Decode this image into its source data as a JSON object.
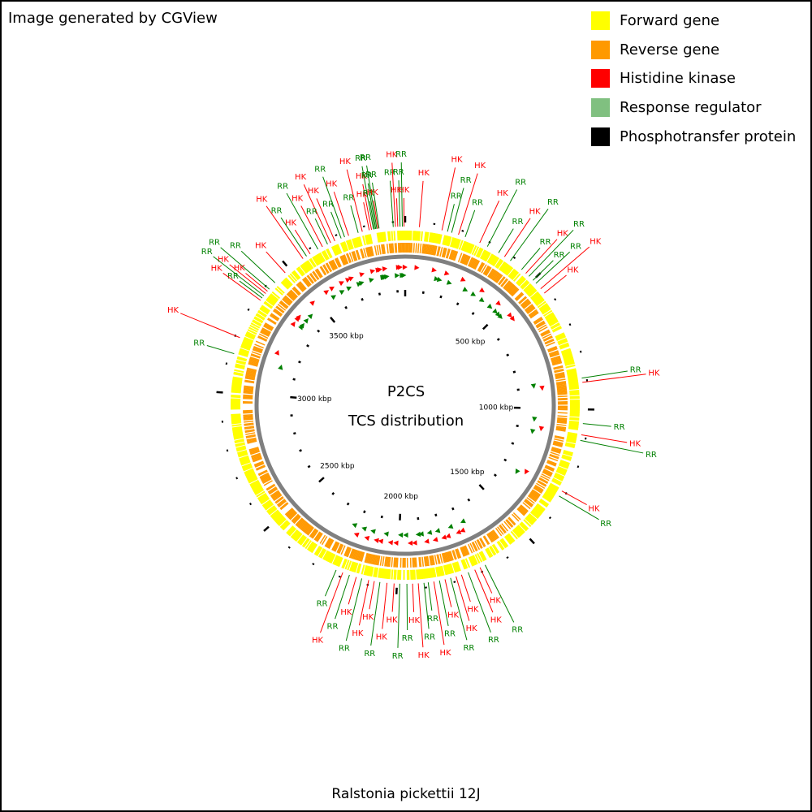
{
  "credit": "Image generated by CGView",
  "caption": "Ralstonia pickettii 12J",
  "center": {
    "line1": "P2CS",
    "line2": "TCS distribution"
  },
  "legend": [
    {
      "label": "Forward gene",
      "color": "#ffff00"
    },
    {
      "label": "Reverse gene",
      "color": "#ff9900"
    },
    {
      "label": "Histidine kinase",
      "color": "#ff0000"
    },
    {
      "label": "Response regulator",
      "color": "#80c080"
    },
    {
      "label": "Phosphotransfer protein",
      "color": "#000000"
    }
  ],
  "colors": {
    "forward": "#ffff00",
    "reverse": "#ff9900",
    "hk": "#ff0000",
    "rr": "#008000",
    "rr_legend": "#80c080",
    "backbone": "#808080"
  },
  "genome": {
    "length_kbp": 3942,
    "tick_labels": [
      {
        "kbp": 500,
        "text": "500 kbp"
      },
      {
        "kbp": 1000,
        "text": "1000 kbp"
      },
      {
        "kbp": 1500,
        "text": "1500 kbp"
      },
      {
        "kbp": 2000,
        "text": "2000 kbp"
      },
      {
        "kbp": 2500,
        "text": "2500 kbp"
      },
      {
        "kbp": 3000,
        "text": "3000 kbp"
      },
      {
        "kbp": 3500,
        "text": "3500 kbp"
      }
    ],
    "minor_tick_step_kbp": 100
  },
  "features": [
    {
      "type": "HK",
      "kbp": 3815
    },
    {
      "type": "HK",
      "kbp": 3823
    },
    {
      "type": "RR",
      "kbp": 3830
    },
    {
      "type": "RR",
      "kbp": 3834
    },
    {
      "type": "RR",
      "kbp": 3838
    },
    {
      "type": "RR",
      "kbp": 3842
    },
    {
      "type": "HK",
      "kbp": 3846
    },
    {
      "type": "RR",
      "kbp": 3850
    },
    {
      "type": "HK",
      "kbp": 3790
    },
    {
      "type": "RR",
      "kbp": 3775
    },
    {
      "type": "HK",
      "kbp": 3740
    },
    {
      "type": "RR",
      "kbp": 3725
    },
    {
      "type": "RR",
      "kbp": 3712
    },
    {
      "type": "HK",
      "kbp": 3688
    },
    {
      "type": "HK",
      "kbp": 3672
    },
    {
      "type": "RR",
      "kbp": 3660
    },
    {
      "type": "HK",
      "kbp": 3640
    },
    {
      "type": "RR",
      "kbp": 3622
    },
    {
      "type": "HK",
      "kbp": 3590
    },
    {
      "type": "RR",
      "kbp": 3575
    },
    {
      "type": "HK",
      "kbp": 3560
    },
    {
      "type": "HK",
      "kbp": 3480
    },
    {
      "type": "RR",
      "kbp": 3430
    },
    {
      "type": "RR",
      "kbp": 3400
    },
    {
      "type": "HK",
      "kbp": 3390
    },
    {
      "type": "HK",
      "kbp": 3380
    },
    {
      "type": "RR",
      "kbp": 3370
    },
    {
      "type": "RR",
      "kbp": 3360
    },
    {
      "type": "HK",
      "kbp": 3350
    },
    {
      "type": "HK",
      "kbp": 3200
    },
    {
      "type": "RR",
      "kbp": 3140
    },
    {
      "type": "RR",
      "kbp": 3900
    },
    {
      "type": "HK",
      "kbp": 3908
    },
    {
      "type": "HK",
      "kbp": 3916
    },
    {
      "type": "RR",
      "kbp": 3924
    },
    {
      "type": "RR",
      "kbp": 3932
    },
    {
      "type": "HK",
      "kbp": 3938
    },
    {
      "type": "HK",
      "kbp": 50
    },
    {
      "type": "HK",
      "kbp": 130
    },
    {
      "type": "RR",
      "kbp": 150
    },
    {
      "type": "RR",
      "kbp": 165
    },
    {
      "type": "HK",
      "kbp": 190
    },
    {
      "type": "RR",
      "kbp": 215
    },
    {
      "type": "HK",
      "kbp": 270
    },
    {
      "type": "RR",
      "kbp": 300
    },
    {
      "type": "RR",
      "kbp": 345
    },
    {
      "type": "HK",
      "kbp": 370
    },
    {
      "type": "RR",
      "kbp": 395
    },
    {
      "type": "RR",
      "kbp": 445
    },
    {
      "type": "HK",
      "kbp": 465
    },
    {
      "type": "RR",
      "kbp": 480
    },
    {
      "type": "RR",
      "kbp": 500
    },
    {
      "type": "RR",
      "kbp": 515
    },
    {
      "type": "HK",
      "kbp": 540
    },
    {
      "type": "HK",
      "kbp": 560
    },
    {
      "type": "RR",
      "kbp": 890
    },
    {
      "type": "HK",
      "kbp": 905
    },
    {
      "type": "RR",
      "kbp": 1050
    },
    {
      "type": "HK",
      "kbp": 1090
    },
    {
      "type": "RR",
      "kbp": 1110
    },
    {
      "type": "HK",
      "kbp": 1300
    },
    {
      "type": "RR",
      "kbp": 1320
    },
    {
      "type": "RR",
      "kbp": 1680
    },
    {
      "type": "HK",
      "kbp": 1700
    },
    {
      "type": "HK",
      "kbp": 1720
    },
    {
      "type": "RR",
      "kbp": 1745
    },
    {
      "type": "HK",
      "kbp": 1770
    },
    {
      "type": "HK",
      "kbp": 1790
    },
    {
      "type": "RR",
      "kbp": 1810
    },
    {
      "type": "HK",
      "kbp": 1830
    },
    {
      "type": "RR",
      "kbp": 1850
    },
    {
      "type": "HK",
      "kbp": 1870
    },
    {
      "type": "RR",
      "kbp": 1890
    },
    {
      "type": "RR",
      "kbp": 1905
    },
    {
      "type": "HK",
      "kbp": 1925
    },
    {
      "type": "HK",
      "kbp": 1945
    },
    {
      "type": "RR",
      "kbp": 1965
    },
    {
      "type": "RR",
      "kbp": 1990
    },
    {
      "type": "HK",
      "kbp": 2010
    },
    {
      "type": "HK",
      "kbp": 2035
    },
    {
      "type": "RR",
      "kbp": 2060
    },
    {
      "type": "HK",
      "kbp": 2080
    },
    {
      "type": "HK",
      "kbp": 2100
    },
    {
      "type": "RR",
      "kbp": 2125
    },
    {
      "type": "HK",
      "kbp": 2145
    },
    {
      "type": "RR",
      "kbp": 2170
    },
    {
      "type": "HK",
      "kbp": 2195
    },
    {
      "type": "RR",
      "kbp": 2220
    }
  ]
}
